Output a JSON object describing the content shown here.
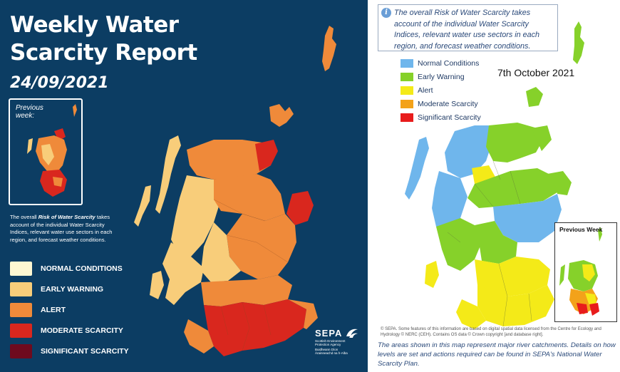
{
  "left": {
    "title_line1": "Weekly Water",
    "title_line2": "Scarcity Report",
    "date": "24/09/2021",
    "previous_week_label": "Previous week:",
    "description_bold": "Risk of Water Scarcity",
    "description_before": "The overall ",
    "description_after": " takes account of the individual Water Scarcity Indices, relevant water use sectors in each region, and forecast weather conditions.",
    "legend": [
      {
        "label": "NORMAL CONDITIONS",
        "color": "#fdf7d2"
      },
      {
        "label": "EARLY WARNING",
        "color": "#f8cd7a"
      },
      {
        "label": "ALERT",
        "color": "#ef8a3a"
      },
      {
        "label": "MODERATE SCARCITY",
        "color": "#d9271e"
      },
      {
        "label": "SIGNIFICANT SCARCITY",
        "color": "#6e0a1e"
      }
    ],
    "logo": {
      "name": "SEPA",
      "sub1": "Scottish Environment",
      "sub2": "Protection Agency",
      "sub3": "Buidheann Dìon",
      "sub4": "Àrainneachd na h-Alba"
    }
  },
  "right": {
    "info_text": "The overall Risk of Water Scarcity takes account of the individual Water Scarcity Indices, relevant water use sectors in each region, and forecast weather conditions.",
    "date": "7th October 2021",
    "legend": [
      {
        "label": "Normal Conditions",
        "color": "#6fb6ec"
      },
      {
        "label": "Early Warning",
        "color": "#86d12a"
      },
      {
        "label": "Alert",
        "color": "#f4ea18"
      },
      {
        "label": "Moderate Scarcity",
        "color": "#f3a21a"
      },
      {
        "label": "Significant Scarcity",
        "color": "#e81c1c"
      }
    ],
    "previous_week_label": "Previous Week",
    "copyright": "© SEPA. Some features of this information are based on digital spatial data licensed from the Centre for Ecology and Hydrology © NERC (CEH). Contains OS data © Crown copyright [and database right].",
    "footer_note": "The areas shown in this map represent major river catchments. Details on how levels are set and actions required can be found in SEPA's National Water Scarcity Plan."
  }
}
